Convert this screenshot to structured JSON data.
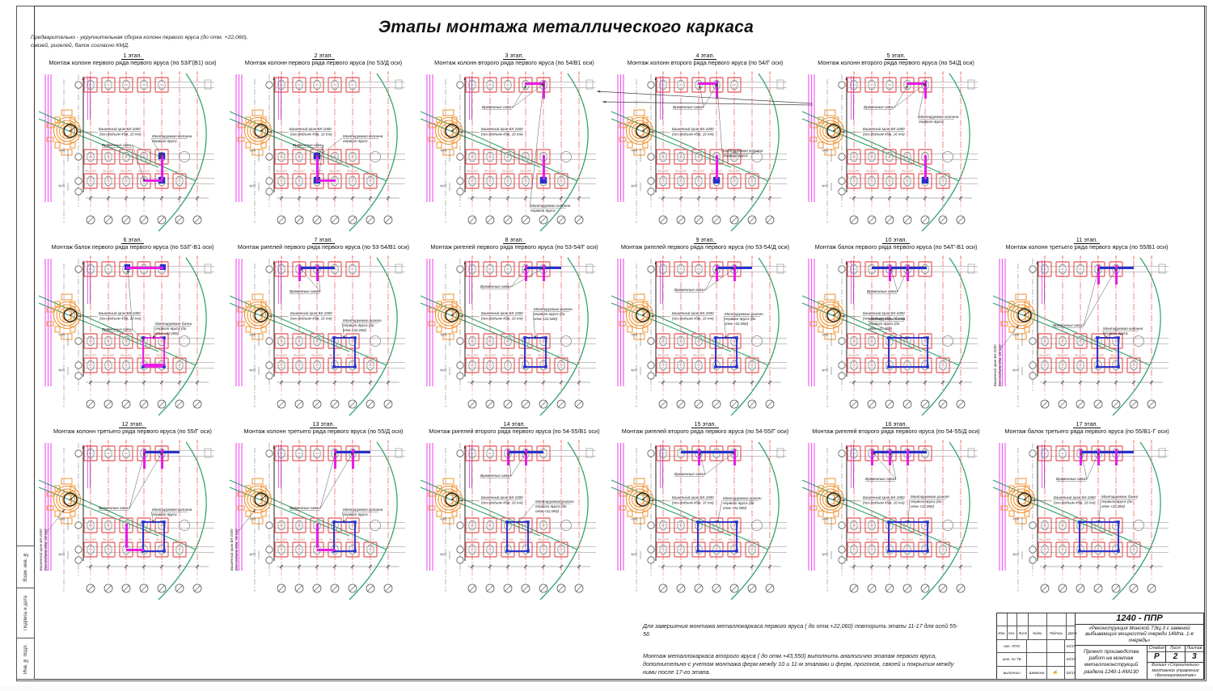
{
  "page": {
    "title": "Этапы монтажа металлического каркаса",
    "top_note_line1": "Предварительно -  укрупнительная сборка колонн первого яруса (до отм. +22,060),",
    "top_note_line2": "связей, ригелей, балок согласно КМД.",
    "frame_labels": [
      "Взам. инв. №",
      "Подпись и дата",
      "Инв. № подл."
    ]
  },
  "common_labels": {
    "crane_line1": "Башенный кран БК-1000",
    "crane_line2": "(осн.подъем 45м, 16 тн)",
    "braces": "Временные связи",
    "footing": "Пм12/1КЛ",
    "footing_right": "12/1КЛ",
    "dim_left_top": "2(х2)",
    "dim_left_bottom": "4(х2)"
  },
  "colors": {
    "magenta": "#e81ce8",
    "magenta_light": "#f45cf4",
    "blue": "#2830d0",
    "red": "#e85454",
    "red_grid": "#f06a6a",
    "orange": "#f0912e",
    "green": "#2ea06e",
    "gray": "#888888",
    "dark": "#333333"
  },
  "stages": [
    {
      "num": "1 этап.",
      "title": "Монтаж колонн первого ряда первого яруса (по 53/Г(В1) оси)",
      "mounted": [
        "Монтируемая колонна",
        "первого яруса"
      ],
      "cv": false,
      "bp": [
        80,
        93
      ],
      "mp": [
        142,
        82
      ],
      "m": [
        [
          153,
          104,
          3,
          30
        ],
        [
          131,
          134,
          24,
          3
        ]
      ],
      "b": [
        [
          150,
          101,
          8,
          8
        ],
        [
          150,
          131,
          8,
          8
        ]
      ]
    },
    {
      "num": "2 этап.",
      "title": "Монтаж колонн первого ряда первого яруса (по 53/Д оси)",
      "mounted": [
        "Монтируемая колонна",
        "первого яруса"
      ],
      "cv": false,
      "bp": [
        80,
        93
      ],
      "mp": [
        142,
        82
      ],
      "m": [
        [
          109,
          104,
          3,
          30
        ],
        [
          109,
          134,
          24,
          3
        ]
      ],
      "b": [
        [
          106,
          101,
          8,
          8
        ],
        [
          106,
          131,
          8,
          8
        ]
      ]
    },
    {
      "num": "3 этап.",
      "title": "Монтаж колонн второго ряда первого яруса (по 54/В1 оси)",
      "mounted": [
        "Монтируемая колонна",
        "первого яруса"
      ],
      "cv": false,
      "bp": [
        78,
        46
      ],
      "mp": [
        138,
        168
      ],
      "m": [
        [
          153,
          12,
          3,
          22
        ],
        [
          131,
          14,
          22,
          3
        ],
        [
          153,
          104,
          3,
          30
        ]
      ],
      "b": [
        [
          150,
          131,
          8,
          8
        ]
      ]
    },
    {
      "num": "4 этап.",
      "title": "Монтаж колонн второго ряда первого яруса (по 54/Г оси)",
      "mounted": [
        "Монтируемая колонна",
        "первого яруса"
      ],
      "cv": false,
      "bp": [
        78,
        46
      ],
      "mp": [
        140,
        100
      ],
      "m": [
        [
          131,
          12,
          3,
          22
        ],
        [
          109,
          14,
          22,
          3
        ],
        [
          131,
          104,
          3,
          30
        ]
      ],
      "b": [
        [
          128,
          131,
          8,
          8
        ]
      ]
    },
    {
      "num": "5 этап.",
      "title": "Монтаж колонн второго ряда первого яруса (по 54/Д оси)",
      "mounted": [
        "Монтируемая колонна",
        "первого яруса"
      ],
      "cv": false,
      "bp": [
        78,
        46
      ],
      "mp": [
        146,
        58
      ],
      "m": [
        [
          153,
          12,
          3,
          22
        ],
        [
          131,
          14,
          22,
          3
        ],
        [
          153,
          104,
          3,
          30
        ]
      ],
      "b": [
        [
          150,
          131,
          8,
          8
        ]
      ]
    },
    {
      "num": "6 этап.",
      "title": "Монтаж балок первого ряда первого яруса (по 53/Г-В1 оси)",
      "mounted": [
        "Монтируемые балки",
        "первого яруса (до",
        "отм.+22,060)"
      ],
      "cv": false,
      "bp": [
        80,
        93
      ],
      "mp": [
        146,
        86
      ],
      "m": [
        [
          110,
          14,
          46,
          3
        ],
        [
          131,
          102,
          26,
          36
        ],
        [
          131,
          134,
          25,
          3
        ]
      ],
      "b": [
        [
          108,
          11,
          7,
          7
        ],
        [
          152,
          11,
          7,
          7
        ]
      ]
    },
    {
      "num": "7 этап.",
      "title": "Монтаж ригелей первого ряда первого яруса (по 53-54/В1 оси)",
      "mounted": [
        "Монтируемые ригели",
        "первого яруса (до",
        "отм.+22,060)"
      ],
      "cv": false,
      "bp": [
        76,
        46
      ],
      "mp": [
        142,
        82
      ],
      "m": [
        [
          87,
          12,
          3,
          20
        ],
        [
          109,
          12,
          3,
          20
        ]
      ],
      "b": [
        [
          88,
          14,
          44,
          3
        ],
        [
          131,
          102,
          26,
          36
        ]
      ]
    },
    {
      "num": "8 этап.",
      "title": "Монтаж ригелей первого ряда первого яруса (по 53-54/Г оси)",
      "mounted": [
        "Монтируемые ригели",
        "первого яруса (до",
        "отм.+22,060)"
      ],
      "cv": false,
      "bp": [
        76,
        40
      ],
      "mp": [
        142,
        68
      ],
      "m": [
        [
          131,
          12,
          3,
          20
        ],
        [
          153,
          12,
          3,
          20
        ]
      ],
      "b": [
        [
          132,
          14,
          44,
          3
        ],
        [
          131,
          102,
          26,
          36
        ]
      ]
    },
    {
      "num": "9 этап.",
      "title": "Монтаж ригелей первого ряда первого яруса (по 53-54/Д оси)",
      "mounted": [
        "Монтируемые ригели",
        "первого яруса (до",
        "отм.+22,060)"
      ],
      "cv": false,
      "bp": [
        80,
        44
      ],
      "mp": [
        142,
        74
      ],
      "m": [
        [
          131,
          12,
          3,
          20
        ],
        [
          153,
          12,
          3,
          20
        ]
      ],
      "b": [
        [
          132,
          14,
          44,
          3
        ],
        [
          131,
          102,
          26,
          36
        ]
      ]
    },
    {
      "num": "10 этап.",
      "title": "Монтаж балок первого ряда первого яруса (по 54/Г-В1 оси)",
      "mounted": [
        "Монтируемые балки",
        "первого яруса (до",
        "отм.+22,060)"
      ],
      "cv": false,
      "bp": [
        82,
        46
      ],
      "mp": [
        84,
        80
      ],
      "m": [
        [
          109,
          12,
          3,
          20
        ],
        [
          131,
          12,
          3,
          20
        ]
      ],
      "b": [
        [
          88,
          14,
          68,
          3
        ],
        [
          109,
          102,
          48,
          36
        ]
      ]
    },
    {
      "num": "11 этап.",
      "title": "Монтаж колонн третьего ряда первого яруса (по 55/В1 оси)",
      "mounted": [
        "Монтируемая колонна",
        "первого яруса"
      ],
      "cv": true,
      "bp": [
        76,
        88
      ],
      "mp": [
        138,
        92
      ],
      "m": [
        [
          131,
          12,
          3,
          24
        ],
        [
          153,
          12,
          3,
          24
        ]
      ],
      "b": [
        [
          132,
          14,
          44,
          3
        ],
        [
          131,
          102,
          26,
          36
        ]
      ]
    },
    {
      "num": "12 этап.",
      "title": "Монтаж колонн третьего ряда первого яруса (по 55/Г оси)",
      "mounted": [
        "Монтируемая колонна",
        "первого яруса"
      ],
      "cv": true,
      "bp": [
        76,
        86
      ],
      "mp": [
        142,
        88
      ],
      "m": [
        [
          131,
          12,
          3,
          24
        ],
        [
          153,
          12,
          3,
          24
        ],
        [
          109,
          104,
          3,
          30
        ],
        [
          110,
          135,
          22,
          3
        ]
      ],
      "b": [
        [
          132,
          14,
          44,
          3
        ],
        [
          131,
          102,
          26,
          36
        ]
      ]
    },
    {
      "num": "13 этап.",
      "title": "Монтаж колонн третьего ряда первого яруса (по 55/Д оси)",
      "mounted": [
        "Монтируемая колонна",
        "первого яруса"
      ],
      "cv": true,
      "bp": [
        76,
        86
      ],
      "mp": [
        142,
        88
      ],
      "m": [
        [
          131,
          12,
          3,
          24
        ],
        [
          153,
          12,
          3,
          24
        ],
        [
          109,
          104,
          3,
          30
        ],
        [
          110,
          135,
          22,
          3
        ]
      ],
      "b": [
        [
          132,
          14,
          44,
          3
        ],
        [
          131,
          102,
          26,
          36
        ]
      ]
    },
    {
      "num": "14 этап.",
      "title": "Монтаж ригелей второго ряда первого яруса (по 54-55/В1 оси)",
      "mounted": [
        "Монтируемые ригели",
        "первого яруса (до",
        "отм.+22,060)"
      ],
      "cv": false,
      "bp": [
        76,
        46
      ],
      "mp": [
        144,
        78
      ],
      "m": [
        [
          109,
          12,
          3,
          20
        ],
        [
          131,
          12,
          3,
          20
        ]
      ],
      "b": [
        [
          110,
          14,
          44,
          3
        ],
        [
          109,
          102,
          26,
          36
        ]
      ]
    },
    {
      "num": "15 этап.",
      "title": "Монтаж ригелей второго ряда первого яруса (по 54-55/Г оси)",
      "mounted": [
        "Монтируемые ригели",
        "первого яруса (до",
        "отм.+22,060)"
      ],
      "cv": false,
      "bp": [
        80,
        44
      ],
      "mp": [
        140,
        74
      ],
      "m": [
        [
          109,
          12,
          3,
          20
        ],
        [
          153,
          12,
          3,
          20
        ]
      ],
      "b": [
        [
          88,
          14,
          68,
          3
        ],
        [
          109,
          102,
          48,
          36
        ]
      ]
    },
    {
      "num": "16 этап.",
      "title": "Монтаж ригелей второго ряда первого яруса (по 54-55/Д оси)",
      "mounted": [
        "Монтируемые ригеля",
        "первого яруса (до",
        "отм.+22,060)"
      ],
      "cv": false,
      "bp": [
        80,
        50
      ],
      "mp": [
        136,
        72
      ],
      "m": [
        [
          87,
          12,
          3,
          20
        ],
        [
          109,
          12,
          3,
          20
        ],
        [
          131,
          12,
          3,
          20
        ]
      ],
      "b": [
        [
          88,
          14,
          68,
          3
        ],
        [
          109,
          102,
          48,
          36
        ]
      ]
    },
    {
      "num": "17 этап.",
      "title": "Монтаж балок третьего ряда первого яруса (по 55/В1-Г оси)",
      "mounted": [
        "Монтируемые балки",
        "первого яруса (до",
        "отм.+22,060)"
      ],
      "cv": false,
      "bp": [
        80,
        50
      ],
      "mp": [
        136,
        72
      ],
      "m": [
        [
          109,
          12,
          3,
          20
        ],
        [
          131,
          12,
          3,
          20
        ],
        [
          153,
          12,
          3,
          20
        ]
      ],
      "b": [
        [
          110,
          14,
          66,
          3
        ],
        [
          109,
          102,
          48,
          36
        ]
      ]
    }
  ],
  "rows": [
    5,
    6,
    6
  ],
  "notes": [
    "Для завершения монтажа металлокаркаса первого яруса ( до отм.+22,060) повторить этапы 11-17 для осей 55-56",
    "Монтаж металлокаркаса второго яруса ( до отм.+43,550) выполнить аналогично этапам первого яруса, дополнительно-с учетом монтажа ферм между 10  и 11-м этапами и ферм, прогонов, связей и покрытия между ними после 17-го этапа."
  ],
  "title_block": {
    "code": "1240 - ППР",
    "project": "«Реконструкция Минской ТЭЦ-3 с заменой выбывающих мощностей очереди 14Мпа. 1-я очередь»",
    "doc": "Проект производства работ на монтаж металлоконструкций раздела 1240-1-КМ130",
    "stage_headers": [
      "Стадия",
      "Лист",
      "Листов"
    ],
    "stage_values": [
      "Р",
      "2",
      "3"
    ],
    "org": "Филиал «Строительно-монтажное управление «Белэнергомонтаж»",
    "sig_headers": [
      "Изм.",
      "Кол.",
      "Лист",
      "№док.",
      "Подпись",
      "Дата"
    ],
    "sig_rows": [
      [
        "нач. ППО",
        "",
        "",
        "04/19"
      ],
      [
        "инж. по ТБ",
        "",
        "",
        "04/19"
      ],
      [
        "выполнил",
        "Шевелев",
        "✍",
        "04/19"
      ]
    ]
  }
}
